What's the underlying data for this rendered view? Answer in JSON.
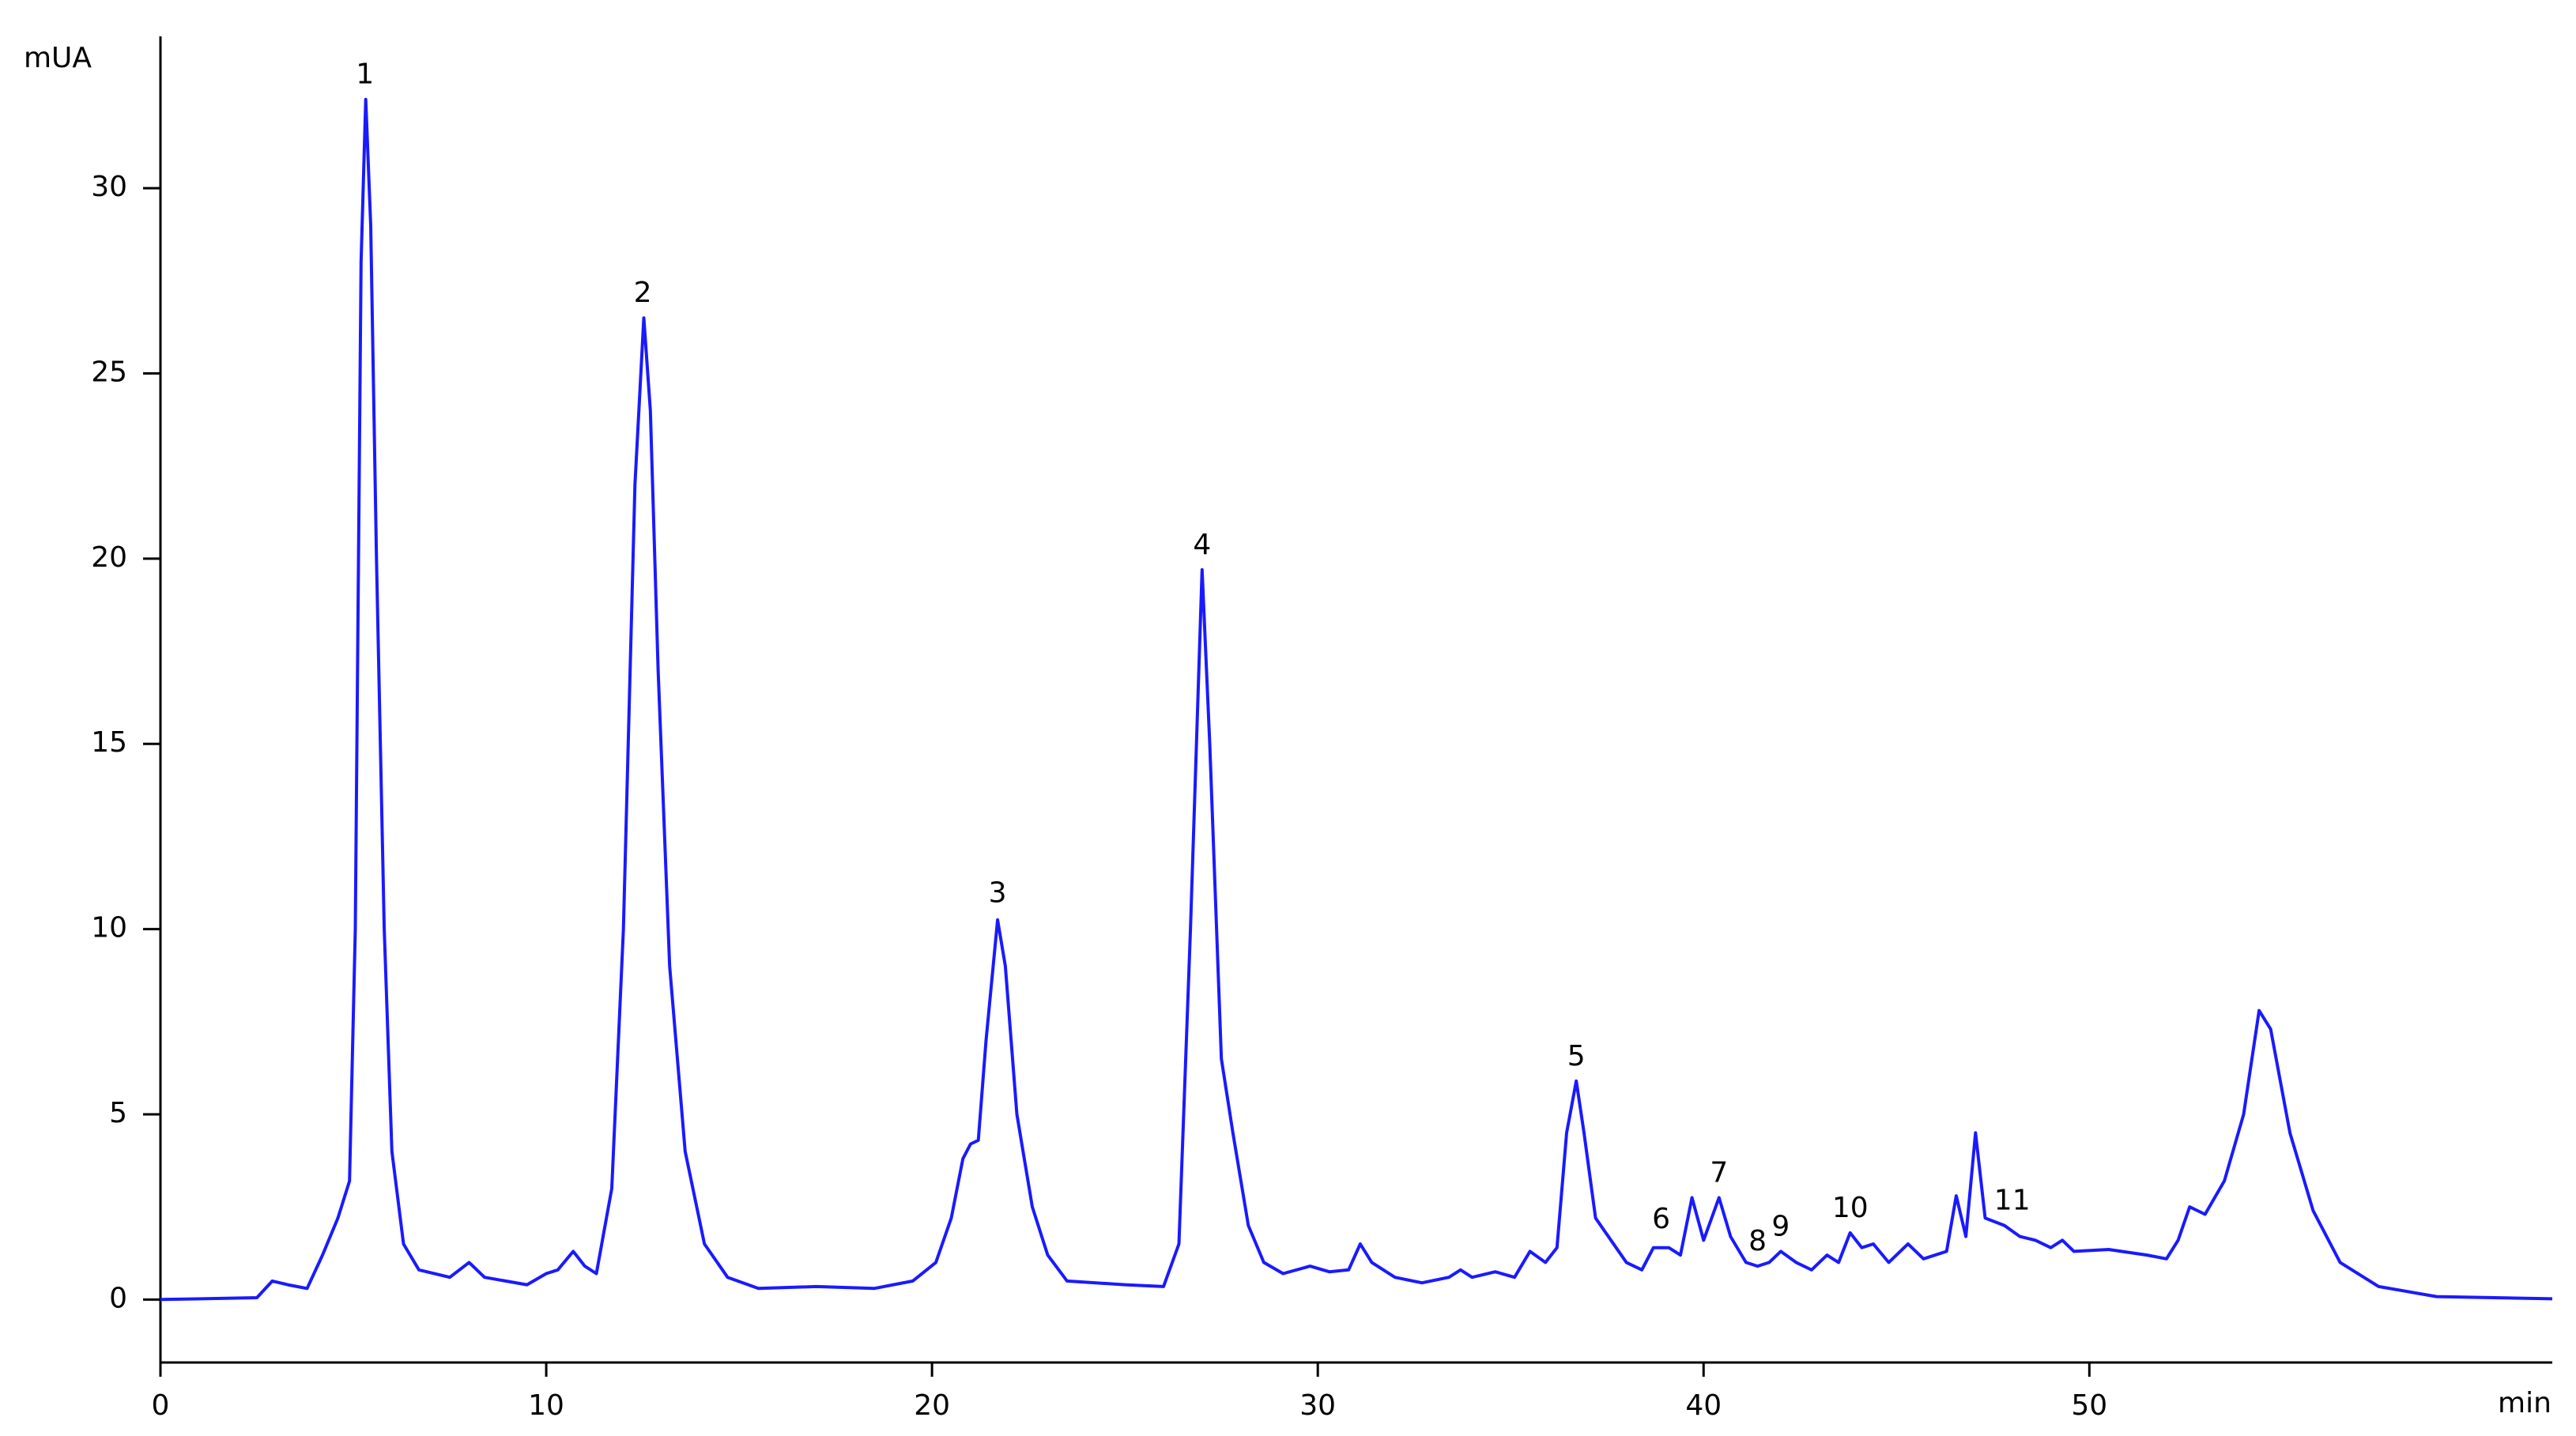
{
  "chart_data": {
    "type": "line",
    "y_label": "mUA",
    "x_label": "min",
    "xlim": [
      0,
      62
    ],
    "ylim": [
      -1.7,
      34.1
    ],
    "xticks": [
      0,
      10,
      20,
      30,
      40,
      50
    ],
    "yticks": [
      0,
      5,
      10,
      15,
      20,
      25,
      30
    ],
    "color": "#1a1aff",
    "x": [
      0,
      2.5,
      2.9,
      3.3,
      3.8,
      4.2,
      4.6,
      4.9,
      5.05,
      5.2,
      5.32,
      5.45,
      5.6,
      5.8,
      6.0,
      6.3,
      6.7,
      7.5,
      8.0,
      8.4,
      9.5,
      10.0,
      10.3,
      10.7,
      11.0,
      11.3,
      11.7,
      12.0,
      12.3,
      12.53,
      12.7,
      12.9,
      13.2,
      13.6,
      14.1,
      14.7,
      15.5,
      17.0,
      18.5,
      19.5,
      20.1,
      20.5,
      20.8,
      21.0,
      21.2,
      21.4,
      21.7,
      21.9,
      22.2,
      22.6,
      23.0,
      23.5,
      25,
      26.0,
      26.4,
      26.7,
      27.0,
      27.2,
      27.5,
      27.8,
      28.2,
      28.6,
      29.1,
      29.8,
      30.3,
      30.8,
      31.1,
      31.4,
      32.0,
      32.7,
      33.4,
      33.7,
      34.0,
      34.6,
      35.1,
      35.5,
      35.9,
      36.2,
      36.45,
      36.7,
      36.9,
      37.2,
      37.6,
      38.0,
      38.4,
      38.7,
      39.1,
      39.4,
      39.7,
      40.0,
      40.4,
      40.7,
      41.1,
      41.4,
      41.7,
      42.0,
      42.4,
      42.8,
      43.2,
      43.5,
      43.8,
      44.1,
      44.4,
      44.8,
      45.3,
      45.7,
      46.3,
      46.55,
      46.8,
      47.05,
      47.3,
      47.8,
      48.2,
      48.6,
      49.0,
      49.3,
      49.6,
      50.5,
      51.5,
      52.0,
      52.3,
      52.6,
      53.0,
      53.5,
      54.0,
      54.4,
      54.7,
      55.2,
      55.8,
      56.5,
      57.5,
      59,
      62
    ],
    "values": [
      0,
      0.05,
      0.5,
      0.4,
      0.3,
      1.2,
      2.2,
      3.2,
      10,
      28,
      32.4,
      29,
      20,
      10,
      4,
      1.5,
      0.8,
      0.6,
      1.0,
      0.6,
      0.4,
      0.7,
      0.8,
      1.3,
      0.9,
      0.7,
      3,
      10,
      22,
      26.5,
      24,
      17,
      9,
      4,
      1.5,
      0.6,
      0.3,
      0.35,
      0.3,
      0.5,
      1.0,
      2.2,
      3.8,
      4.2,
      4.3,
      7,
      10.25,
      9,
      5,
      2.5,
      1.2,
      0.5,
      0.4,
      0.35,
      1.5,
      10,
      19.7,
      15,
      6.5,
      4.5,
      2,
      1,
      0.7,
      0.9,
      0.75,
      0.8,
      1.5,
      1.0,
      0.6,
      0.45,
      0.6,
      0.8,
      0.6,
      0.75,
      0.6,
      1.3,
      1.0,
      1.4,
      4.5,
      5.9,
      4.5,
      2.2,
      1.6,
      1.0,
      0.8,
      1.4,
      1.4,
      1.2,
      2.75,
      1.6,
      2.75,
      1.7,
      1.0,
      0.9,
      1.0,
      1.3,
      1.0,
      0.8,
      1.2,
      1.0,
      1.8,
      1.4,
      1.5,
      1.0,
      1.5,
      1.1,
      1.3,
      2.8,
      1.7,
      4.5,
      2.2,
      2.0,
      1.7,
      1.6,
      1.4,
      1.6,
      1.3,
      1.35,
      1.2,
      1.1,
      1.6,
      2.5,
      2.3,
      3.2,
      5,
      7.8,
      7.3,
      4.5,
      2.4,
      1.0,
      0.35,
      0.08,
      0.02
    ],
    "annotations": [
      {
        "text": "1",
        "x": 5.3,
        "y": 32.4
      },
      {
        "text": "2",
        "x": 12.5,
        "y": 26.5
      },
      {
        "text": "3",
        "x": 21.7,
        "y": 10.3
      },
      {
        "text": "4",
        "x": 27.0,
        "y": 19.7
      },
      {
        "text": "5",
        "x": 36.7,
        "y": 5.9
      },
      {
        "text": "6",
        "x": 38.9,
        "y": 1.5
      },
      {
        "text": "7",
        "x": 40.4,
        "y": 2.75
      },
      {
        "text": "8",
        "x": 41.4,
        "y": 0.9
      },
      {
        "text": "9",
        "x": 42.0,
        "y": 1.3
      },
      {
        "text": "10",
        "x": 43.8,
        "y": 1.8
      },
      {
        "text": "11",
        "x": 48.0,
        "y": 2.0
      }
    ]
  }
}
